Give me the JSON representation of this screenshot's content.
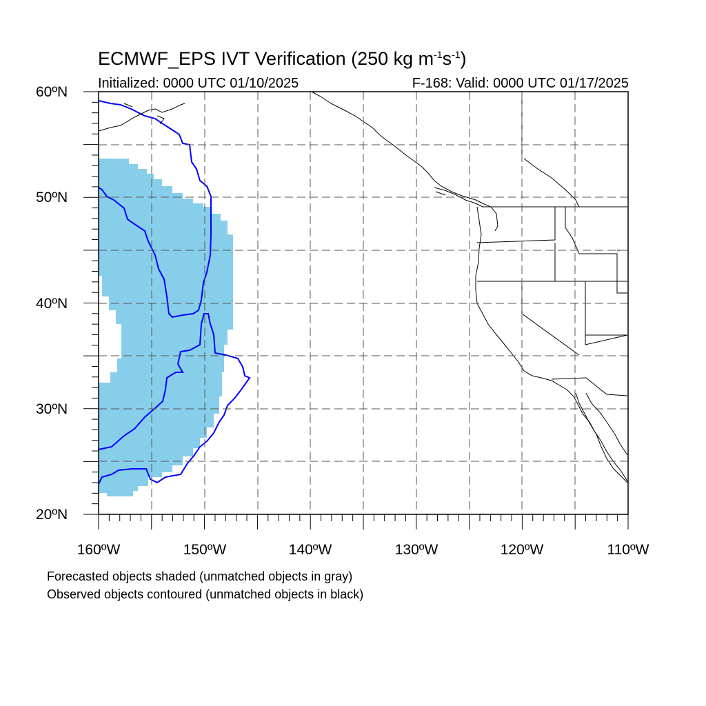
{
  "title": {
    "main_prefix": "ECMWF_EPS IVT Verification (250 kg m",
    "exp1": "-1",
    "mid": "s",
    "exp2": "-1",
    "suffix": ")"
  },
  "subtitle": {
    "initialized": "Initialized: 0000 UTC 01/10/2025",
    "valid": "F-168: Valid: 0000 UTC 01/17/2025"
  },
  "axes": {
    "lat_labels": [
      "60ºN",
      "50ºN",
      "40ºN",
      "30ºN",
      "20ºN"
    ],
    "lon_labels": [
      "160ºW",
      "150ºW",
      "140ºW",
      "130ºW",
      "120ºW",
      "110ºW"
    ],
    "lon_range": [
      -160,
      -110
    ],
    "lat_range": [
      20,
      60
    ],
    "gridlines": "dashed"
  },
  "legend": {
    "line1": "Forecasted objects shaded (unmatched objects in gray)",
    "line2": "Observed objects contoured (unmatched objects in black)"
  },
  "colors": {
    "forecast_shade": "#87ceeb",
    "observed_contour": "#0000ff",
    "coastline": "#000000",
    "grid": "#555555"
  }
}
